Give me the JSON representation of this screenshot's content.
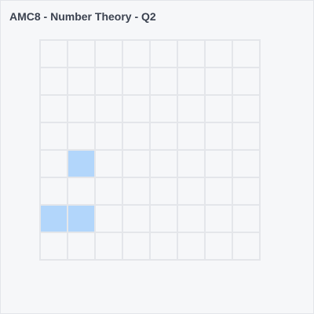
{
  "title": "AMC8 - Number Theory - Q2",
  "grid": {
    "rows": 8,
    "cols": 8,
    "filled_cells": [
      {
        "row": 4,
        "col": 1
      },
      {
        "row": 6,
        "col": 0
      },
      {
        "row": 6,
        "col": 1
      }
    ]
  },
  "colors": {
    "background": "#f6f7f9",
    "grid_line": "#e4e6ea",
    "filled": "#b2d6fb",
    "title_text": "#3b4250"
  }
}
